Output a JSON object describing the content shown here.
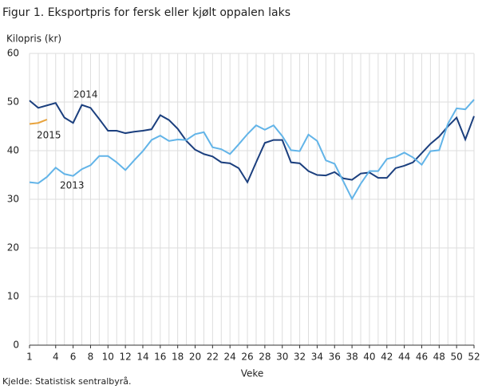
{
  "chart_data": {
    "type": "line",
    "title": "Figur 1. Eksportpris for fersk eller kjølt oppalen laks",
    "y_label": "Kilopris  (kr)",
    "x_label": "Veke",
    "source": "Kjelde: Statistisk sentralbyrå.",
    "x": [
      1,
      2,
      3,
      4,
      5,
      6,
      7,
      8,
      9,
      10,
      11,
      12,
      13,
      14,
      15,
      16,
      17,
      18,
      19,
      20,
      21,
      22,
      23,
      24,
      25,
      26,
      27,
      28,
      29,
      30,
      31,
      32,
      33,
      34,
      35,
      36,
      37,
      38,
      39,
      40,
      41,
      42,
      43,
      44,
      45,
      46,
      47,
      48,
      49,
      50,
      51,
      52
    ],
    "xlim": [
      1,
      52
    ],
    "xticks": [
      1,
      4,
      6,
      8,
      10,
      12,
      14,
      16,
      18,
      20,
      22,
      24,
      26,
      28,
      30,
      32,
      34,
      36,
      38,
      40,
      42,
      44,
      46,
      48,
      50,
      52
    ],
    "ylim": [
      0,
      60
    ],
    "yticks": [
      0,
      10,
      20,
      30,
      40,
      50,
      60
    ],
    "grid": true,
    "series": [
      {
        "name": "2014",
        "color": "#1b3f7e",
        "values": [
          50.3,
          48.8,
          49.3,
          49.8,
          46.8,
          45.7,
          49.4,
          48.8,
          46.5,
          44.1,
          44.1,
          43.6,
          43.9,
          44.1,
          44.4,
          47.3,
          46.3,
          44.5,
          42.0,
          40.2,
          39.3,
          38.8,
          37.6,
          37.4,
          36.4,
          33.5,
          37.6,
          41.6,
          42.2,
          42.2,
          37.6,
          37.4,
          35.8,
          35.0,
          34.9,
          35.6,
          34.3,
          34.0,
          35.3,
          35.5,
          34.4,
          34.4,
          36.4,
          36.9,
          37.6,
          39.5,
          41.4,
          42.9,
          45.0,
          46.8,
          42.3,
          47.1
        ]
      },
      {
        "name": "2015",
        "color": "#e8a33d",
        "values": [
          45.5,
          45.7,
          46.4,
          null,
          null,
          null,
          null,
          null,
          null,
          null,
          null,
          null,
          null,
          null,
          null,
          null,
          null,
          null,
          null,
          null,
          null,
          null,
          null,
          null,
          null,
          null,
          null,
          null,
          null,
          null,
          null,
          null,
          null,
          null,
          null,
          null,
          null,
          null,
          null,
          null,
          null,
          null,
          null,
          null,
          null,
          null,
          null,
          null,
          null,
          null,
          null,
          null
        ]
      },
      {
        "name": "2013",
        "color": "#62b4e8",
        "values": [
          33.5,
          33.3,
          34.6,
          36.5,
          35.2,
          34.8,
          36.2,
          37.0,
          38.9,
          38.9,
          37.6,
          36.0,
          38.0,
          39.9,
          42.2,
          43.1,
          42.0,
          42.3,
          42.2,
          43.4,
          43.8,
          40.7,
          40.3,
          39.3,
          41.3,
          43.4,
          45.2,
          44.3,
          45.2,
          43.0,
          40.1,
          39.9,
          43.3,
          42.0,
          38.0,
          37.3,
          33.7,
          30.1,
          33.2,
          35.8,
          35.8,
          38.3,
          38.7,
          39.6,
          38.6,
          37.1,
          39.9,
          40.1,
          45.5,
          48.7,
          48.5,
          50.5
        ]
      }
    ]
  }
}
